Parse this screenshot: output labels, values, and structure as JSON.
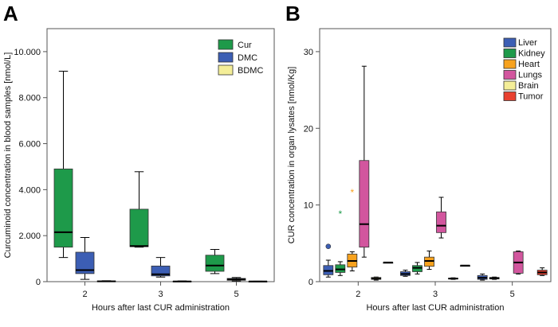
{
  "panels": {
    "a": {
      "letter": "A"
    },
    "b": {
      "letter": "B"
    }
  },
  "chart_data": [
    {
      "type": "boxplot",
      "panel": "A",
      "xlabel": "Hours after last CUR administration",
      "ylabel": "Curcuminoid concentration in blood samples [nmol/L]",
      "categories": [
        "2",
        "3",
        "5"
      ],
      "ylim": [
        0,
        11000
      ],
      "yticks": [
        0,
        2000,
        4000,
        6000,
        8000,
        10000
      ],
      "ytick_labels": [
        "0",
        "2.000",
        "4.000",
        "6.000",
        "8.000",
        "10.000"
      ],
      "legend_position": "top-right",
      "series": [
        {
          "name": "Cur",
          "color": "#1e9a4a",
          "boxes": [
            {
              "category": "2",
              "min": 1050,
              "q1": 1500,
              "median": 2150,
              "q3": 4900,
              "max": 9150
            },
            {
              "category": "3",
              "min": 1500,
              "q1": 1520,
              "median": 1550,
              "q3": 3150,
              "max": 4780
            },
            {
              "category": "5",
              "min": 350,
              "q1": 450,
              "median": 700,
              "q3": 1150,
              "max": 1400
            }
          ]
        },
        {
          "name": "DMC",
          "color": "#3c5eb4",
          "boxes": [
            {
              "category": "2",
              "min": 100,
              "q1": 350,
              "median": 500,
              "q3": 1280,
              "max": 1920
            },
            {
              "category": "3",
              "min": 200,
              "q1": 250,
              "median": 320,
              "q3": 680,
              "max": 1050
            },
            {
              "category": "5",
              "min": 30,
              "q1": 60,
              "median": 100,
              "q3": 140,
              "max": 180
            }
          ]
        },
        {
          "name": "BDMC",
          "color": "#f4ee98",
          "boxes": [
            {
              "category": "2",
              "min": 0,
              "q1": 5,
              "median": 15,
              "q3": 30,
              "max": 40
            },
            {
              "category": "3",
              "min": 0,
              "q1": 5,
              "median": 10,
              "q3": 20,
              "max": 30
            },
            {
              "category": "5",
              "min": 0,
              "q1": 3,
              "median": 8,
              "q3": 15,
              "max": 20
            }
          ]
        }
      ]
    },
    {
      "type": "boxplot",
      "panel": "B",
      "xlabel": "Hours after last CUR administration",
      "ylabel": "CUR concentration in organ lysates [nmol/Kg]",
      "categories": [
        "2",
        "3",
        "5"
      ],
      "ylim": [
        0,
        33
      ],
      "yticks": [
        0,
        10,
        20,
        30
      ],
      "ytick_labels": [
        "0",
        "10",
        "20",
        "30"
      ],
      "legend_position": "top-right",
      "series": [
        {
          "name": "Liver",
          "color": "#3c5eb4",
          "boxes": [
            {
              "category": "2",
              "min": 0.6,
              "q1": 0.9,
              "median": 1.4,
              "q3": 2.1,
              "max": 2.8,
              "outliers": [
                4.6
              ]
            },
            {
              "category": "3",
              "min": 0.7,
              "q1": 0.8,
              "median": 1.0,
              "q3": 1.3,
              "max": 1.5
            },
            {
              "category": "5",
              "min": 0.2,
              "q1": 0.3,
              "median": 0.5,
              "q3": 0.8,
              "max": 1.0
            }
          ]
        },
        {
          "name": "Kidney",
          "color": "#1e9a4a",
          "boxes": [
            {
              "category": "2",
              "min": 0.8,
              "q1": 1.2,
              "median": 1.6,
              "q3": 2.2,
              "max": 2.6,
              "extremes": [
                8.8
              ]
            },
            {
              "category": "3",
              "min": 1.0,
              "q1": 1.3,
              "median": 1.8,
              "q3": 2.1,
              "max": 2.5
            },
            {
              "category": "5",
              "min": 0.3,
              "q1": 0.35,
              "median": 0.45,
              "q3": 0.55,
              "max": 0.6
            }
          ]
        },
        {
          "name": "Heart",
          "color": "#f7a21e",
          "boxes": [
            {
              "category": "2",
              "min": 1.4,
              "q1": 1.9,
              "median": 2.7,
              "q3": 3.6,
              "max": 3.9,
              "extremes": [
                11.6
              ]
            },
            {
              "category": "3",
              "min": 1.6,
              "q1": 2.0,
              "median": 2.7,
              "q3": 3.2,
              "max": 4.0
            }
          ]
        },
        {
          "name": "Lungs",
          "color": "#d2569e",
          "boxes": [
            {
              "category": "2",
              "min": 3.2,
              "q1": 4.5,
              "median": 7.5,
              "q3": 15.8,
              "max": 28.1
            },
            {
              "category": "3",
              "min": 5.7,
              "q1": 6.4,
              "median": 7.3,
              "q3": 9.1,
              "max": 11.0
            },
            {
              "category": "5",
              "min": 1.0,
              "q1": 1.1,
              "median": 2.5,
              "q3": 3.9,
              "max": 4.0
            }
          ]
        },
        {
          "name": "Brain",
          "color": "#f4ee98",
          "boxes": [
            {
              "category": "2",
              "min": 0.2,
              "q1": 0.3,
              "median": 0.4,
              "q3": 0.55,
              "max": 0.6
            },
            {
              "category": "3",
              "min": 0.3,
              "q1": 0.35,
              "median": 0.4,
              "q3": 0.45,
              "max": 0.5
            }
          ]
        },
        {
          "name": "Tumor",
          "color": "#e84030",
          "boxes": [
            {
              "category": "2",
              "min": 2.5,
              "q1": 2.5,
              "median": 2.5,
              "q3": 2.5,
              "max": 2.5
            },
            {
              "category": "3",
              "min": 2.1,
              "q1": 2.1,
              "median": 2.1,
              "q3": 2.1,
              "max": 2.1
            },
            {
              "category": "5",
              "min": 0.8,
              "q1": 0.9,
              "median": 1.2,
              "q3": 1.5,
              "max": 1.8
            }
          ]
        }
      ]
    }
  ]
}
